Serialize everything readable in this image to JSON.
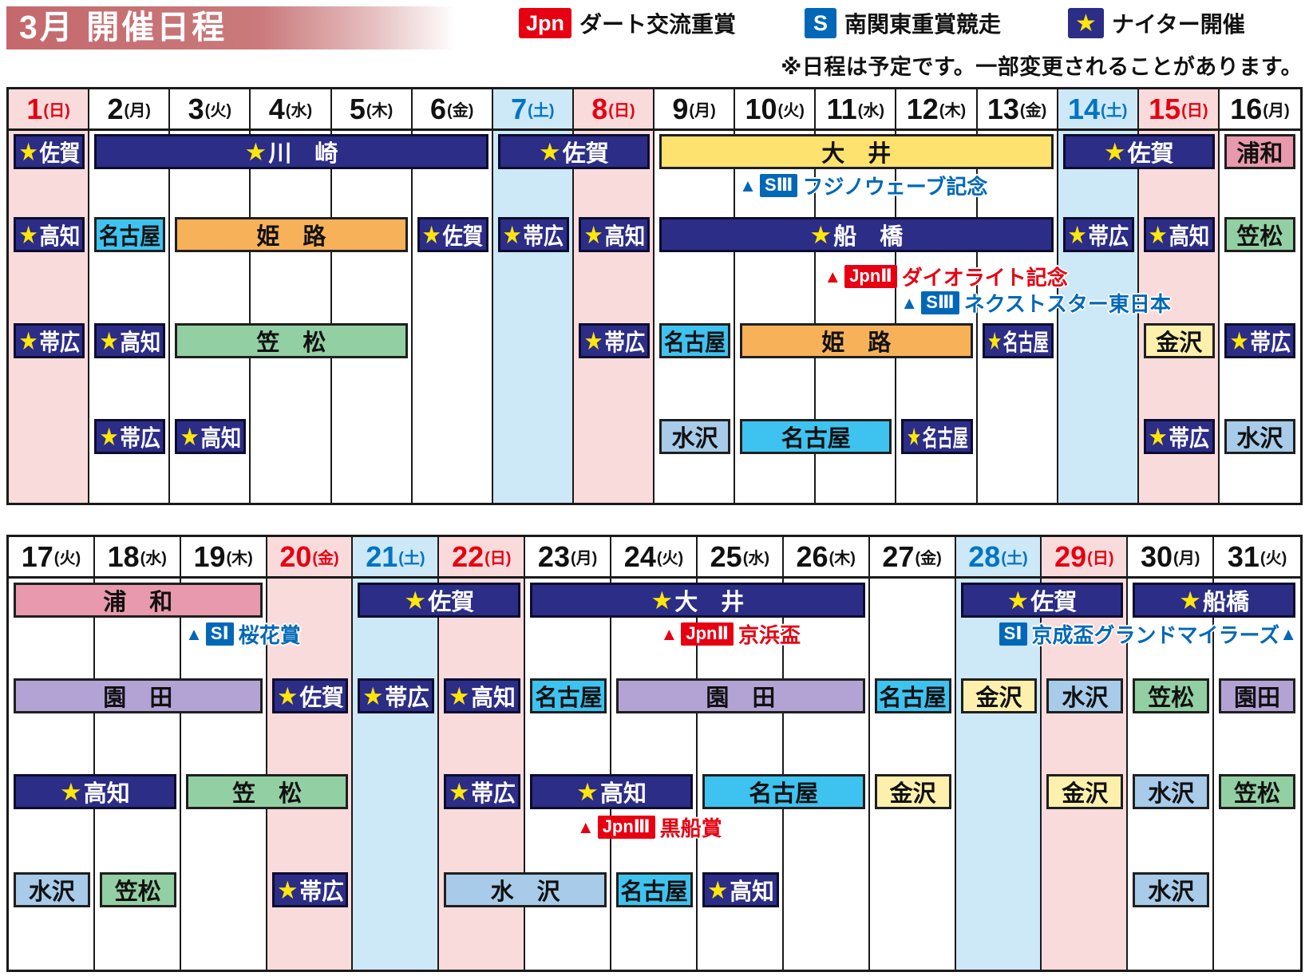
{
  "header": {
    "title": "3月 開催日程",
    "note": "※日程は予定です。一部変更されることがあります。"
  },
  "legend": {
    "items": [
      {
        "badge": "Jpn",
        "kind": "jpn",
        "label": "ダート交流重賞"
      },
      {
        "badge": "S",
        "kind": "s",
        "label": "南関東重賞競走"
      },
      {
        "badge": "★",
        "kind": "night",
        "label": "ナイター開催"
      }
    ]
  },
  "colors": {
    "jpn_red": "#e60012",
    "graded_blue": "#0068b7",
    "night_navy": "#2c2d87",
    "star_yellow": "#ffe60a",
    "sunday_bg": "#fadbdb",
    "saturday_bg": "#cde8f7",
    "sunday_text": "#e60012",
    "saturday_text": "#0074c4",
    "venues": {
      "night": "#2c2d87",
      "oi": "#fde26f",
      "urawa": "#e999ad",
      "nagoya": "#3ec3f0",
      "mizusawa": "#a7cbe9",
      "himeji": "#f7b159",
      "kasamatsu": "#92cfa3",
      "kanazawa": "#fdf0ad",
      "sonoda": "#b3a3d5"
    }
  },
  "grids": [
    {
      "name": "march-1-16",
      "first_day": 1,
      "days": [
        {
          "num": "1",
          "wd": "日",
          "type": "sun"
        },
        {
          "num": "2",
          "wd": "月",
          "type": "wk"
        },
        {
          "num": "3",
          "wd": "火",
          "type": "wk"
        },
        {
          "num": "4",
          "wd": "水",
          "type": "wk"
        },
        {
          "num": "5",
          "wd": "木",
          "type": "wk"
        },
        {
          "num": "6",
          "wd": "金",
          "type": "wk"
        },
        {
          "num": "7",
          "wd": "土",
          "type": "sat"
        },
        {
          "num": "8",
          "wd": "日",
          "type": "sun"
        },
        {
          "num": "9",
          "wd": "月",
          "type": "wk"
        },
        {
          "num": "10",
          "wd": "火",
          "type": "wk"
        },
        {
          "num": "11",
          "wd": "水",
          "type": "wk"
        },
        {
          "num": "12",
          "wd": "木",
          "type": "wk"
        },
        {
          "num": "13",
          "wd": "金",
          "type": "wk"
        },
        {
          "num": "14",
          "wd": "土",
          "type": "sat"
        },
        {
          "num": "15",
          "wd": "日",
          "type": "sun"
        },
        {
          "num": "16",
          "wd": "月",
          "type": "wk"
        }
      ],
      "events": [
        {
          "row": 0,
          "from": 1,
          "to": 1,
          "venue": "佐賀",
          "color": "night",
          "night": true
        },
        {
          "row": 0,
          "from": 2,
          "to": 6,
          "venue": "川　崎",
          "color": "night",
          "night": true
        },
        {
          "row": 0,
          "from": 7,
          "to": 8,
          "venue": "佐賀",
          "color": "night",
          "night": true
        },
        {
          "row": 0,
          "from": 9,
          "to": 13,
          "venue": "大　井",
          "color": "oi",
          "night": false
        },
        {
          "row": 0,
          "from": 14,
          "to": 15,
          "venue": "佐賀",
          "color": "night",
          "night": true
        },
        {
          "row": 0,
          "from": 16,
          "to": 16,
          "venue": "浦和",
          "color": "urawa",
          "night": false
        },
        {
          "row": 1,
          "from": 1,
          "to": 1,
          "venue": "高知",
          "color": "night",
          "night": true
        },
        {
          "row": 1,
          "from": 2,
          "to": 2,
          "venue": "名古屋",
          "color": "nagoya",
          "night": false
        },
        {
          "row": 1,
          "from": 3,
          "to": 5,
          "venue": "姫　路",
          "color": "himeji",
          "night": false
        },
        {
          "row": 1,
          "from": 6,
          "to": 6,
          "venue": "佐賀",
          "color": "night",
          "night": true
        },
        {
          "row": 1,
          "from": 7,
          "to": 7,
          "venue": "帯広",
          "color": "night",
          "night": true
        },
        {
          "row": 1,
          "from": 8,
          "to": 8,
          "venue": "高知",
          "color": "night",
          "night": true
        },
        {
          "row": 1,
          "from": 9,
          "to": 13,
          "venue": "船　橋",
          "color": "night",
          "night": true
        },
        {
          "row": 1,
          "from": 14,
          "to": 14,
          "venue": "帯広",
          "color": "night",
          "night": true
        },
        {
          "row": 1,
          "from": 15,
          "to": 15,
          "venue": "高知",
          "color": "night",
          "night": true
        },
        {
          "row": 1,
          "from": 16,
          "to": 16,
          "venue": "笠松",
          "color": "kasamatsu",
          "night": false
        },
        {
          "row": 2,
          "from": 1,
          "to": 1,
          "venue": "帯広",
          "color": "night",
          "night": true
        },
        {
          "row": 2,
          "from": 2,
          "to": 2,
          "venue": "高知",
          "color": "night",
          "night": true
        },
        {
          "row": 2,
          "from": 3,
          "to": 5,
          "venue": "笠　松",
          "color": "kasamatsu",
          "night": false
        },
        {
          "row": 2,
          "from": 8,
          "to": 8,
          "venue": "帯広",
          "color": "night",
          "night": true
        },
        {
          "row": 2,
          "from": 9,
          "to": 9,
          "venue": "名古屋",
          "color": "nagoya",
          "night": false
        },
        {
          "row": 2,
          "from": 10,
          "to": 12,
          "venue": "姫　路",
          "color": "himeji",
          "night": false
        },
        {
          "row": 2,
          "from": 13,
          "to": 13,
          "venue": "名古屋",
          "color": "night",
          "night": true
        },
        {
          "row": 2,
          "from": 15,
          "to": 15,
          "venue": "金沢",
          "color": "kanazawa",
          "night": false
        },
        {
          "row": 2,
          "from": 16,
          "to": 16,
          "venue": "帯広",
          "color": "night",
          "night": true
        },
        {
          "row": 3,
          "from": 2,
          "to": 2,
          "venue": "帯広",
          "color": "night",
          "night": true
        },
        {
          "row": 3,
          "from": 3,
          "to": 3,
          "venue": "高知",
          "color": "night",
          "night": true
        },
        {
          "row": 3,
          "from": 9,
          "to": 9,
          "venue": "水沢",
          "color": "mizusawa",
          "night": false
        },
        {
          "row": 3,
          "from": 10,
          "to": 11,
          "venue": "名古屋",
          "color": "nagoya",
          "night": false
        },
        {
          "row": 3,
          "from": 12,
          "to": 12,
          "venue": "名古屋",
          "color": "night",
          "night": true
        },
        {
          "row": 3,
          "from": 15,
          "to": 15,
          "venue": "帯広",
          "color": "night",
          "night": true
        },
        {
          "row": 3,
          "from": 16,
          "to": 16,
          "venue": "水沢",
          "color": "mizusawa",
          "night": false
        }
      ],
      "annotations": [
        {
          "row": 0,
          "line": 0,
          "kind": "s",
          "grade": "SⅢ",
          "race": "フジノウェーブ記念",
          "triangle": "before",
          "anchor_day": 10.05
        },
        {
          "row": 1,
          "line": 0,
          "kind": "jpn",
          "grade": "JpnⅡ",
          "race": "ダイオライト記念",
          "triangle": "before",
          "anchor_day": 11.1
        },
        {
          "row": 1,
          "line": 1,
          "kind": "s",
          "grade": "SⅢ",
          "race": "ネクストスター東日本",
          "triangle": "before",
          "anchor_day": 12.05
        }
      ]
    },
    {
      "name": "march-17-31",
      "first_day": 17,
      "days": [
        {
          "num": "17",
          "wd": "火",
          "type": "wk"
        },
        {
          "num": "18",
          "wd": "水",
          "type": "wk"
        },
        {
          "num": "19",
          "wd": "木",
          "type": "wk"
        },
        {
          "num": "20",
          "wd": "金",
          "type": "hol"
        },
        {
          "num": "21",
          "wd": "土",
          "type": "sat"
        },
        {
          "num": "22",
          "wd": "日",
          "type": "sun"
        },
        {
          "num": "23",
          "wd": "月",
          "type": "wk"
        },
        {
          "num": "24",
          "wd": "火",
          "type": "wk"
        },
        {
          "num": "25",
          "wd": "水",
          "type": "wk"
        },
        {
          "num": "26",
          "wd": "木",
          "type": "wk"
        },
        {
          "num": "27",
          "wd": "金",
          "type": "wk"
        },
        {
          "num": "28",
          "wd": "土",
          "type": "sat"
        },
        {
          "num": "29",
          "wd": "日",
          "type": "sun"
        },
        {
          "num": "30",
          "wd": "月",
          "type": "wk"
        },
        {
          "num": "31",
          "wd": "火",
          "type": "wk"
        }
      ],
      "events": [
        {
          "row": 0,
          "from": 17,
          "to": 19,
          "venue": "浦　和",
          "color": "urawa",
          "night": false
        },
        {
          "row": 0,
          "from": 21,
          "to": 22,
          "venue": "佐賀",
          "color": "night",
          "night": true
        },
        {
          "row": 0,
          "from": 23,
          "to": 26,
          "venue": "大　井",
          "color": "night",
          "night": true
        },
        {
          "row": 0,
          "from": 28,
          "to": 29,
          "venue": "佐賀",
          "color": "night",
          "night": true
        },
        {
          "row": 0,
          "from": 30,
          "to": 31,
          "venue": "船橋",
          "color": "night",
          "night": true
        },
        {
          "row": 1,
          "from": 17,
          "to": 19,
          "venue": "園　田",
          "color": "sonoda",
          "night": false
        },
        {
          "row": 1,
          "from": 20,
          "to": 20,
          "venue": "佐賀",
          "color": "night",
          "night": true
        },
        {
          "row": 1,
          "from": 21,
          "to": 21,
          "venue": "帯広",
          "color": "night",
          "night": true
        },
        {
          "row": 1,
          "from": 22,
          "to": 22,
          "venue": "高知",
          "color": "night",
          "night": true
        },
        {
          "row": 1,
          "from": 23,
          "to": 23,
          "venue": "名古屋",
          "color": "nagoya",
          "night": false
        },
        {
          "row": 1,
          "from": 24,
          "to": 26,
          "venue": "園　田",
          "color": "sonoda",
          "night": false
        },
        {
          "row": 1,
          "from": 27,
          "to": 27,
          "venue": "名古屋",
          "color": "nagoya",
          "night": false
        },
        {
          "row": 1,
          "from": 28,
          "to": 28,
          "venue": "金沢",
          "color": "kanazawa",
          "night": false
        },
        {
          "row": 1,
          "from": 29,
          "to": 29,
          "venue": "水沢",
          "color": "mizusawa",
          "night": false
        },
        {
          "row": 1,
          "from": 30,
          "to": 30,
          "venue": "笠松",
          "color": "kasamatsu",
          "night": false
        },
        {
          "row": 1,
          "from": 31,
          "to": 31,
          "venue": "園田",
          "color": "sonoda",
          "night": false
        },
        {
          "row": 2,
          "from": 17,
          "to": 18,
          "venue": "高知",
          "color": "night",
          "night": true
        },
        {
          "row": 2,
          "from": 19,
          "to": 20,
          "venue": "笠　松",
          "color": "kasamatsu",
          "night": false
        },
        {
          "row": 2,
          "from": 22,
          "to": 22,
          "venue": "帯広",
          "color": "night",
          "night": true
        },
        {
          "row": 2,
          "from": 23,
          "to": 24,
          "venue": "高知",
          "color": "night",
          "night": true
        },
        {
          "row": 2,
          "from": 25,
          "to": 26,
          "venue": "名古屋",
          "color": "nagoya",
          "night": false
        },
        {
          "row": 2,
          "from": 27,
          "to": 27,
          "venue": "金沢",
          "color": "kanazawa",
          "night": false
        },
        {
          "row": 2,
          "from": 29,
          "to": 29,
          "venue": "金沢",
          "color": "kanazawa",
          "night": false
        },
        {
          "row": 2,
          "from": 30,
          "to": 30,
          "venue": "水沢",
          "color": "mizusawa",
          "night": false
        },
        {
          "row": 2,
          "from": 31,
          "to": 31,
          "venue": "笠松",
          "color": "kasamatsu",
          "night": false
        },
        {
          "row": 3,
          "from": 17,
          "to": 17,
          "venue": "水沢",
          "color": "mizusawa",
          "night": false
        },
        {
          "row": 3,
          "from": 18,
          "to": 18,
          "venue": "笠松",
          "color": "kasamatsu",
          "night": false
        },
        {
          "row": 3,
          "from": 20,
          "to": 20,
          "venue": "帯広",
          "color": "night",
          "night": true
        },
        {
          "row": 3,
          "from": 22,
          "to": 23,
          "venue": "水　沢",
          "color": "mizusawa",
          "night": false
        },
        {
          "row": 3,
          "from": 24,
          "to": 24,
          "venue": "名古屋",
          "color": "nagoya",
          "night": false
        },
        {
          "row": 3,
          "from": 25,
          "to": 25,
          "venue": "高知",
          "color": "night",
          "night": true
        },
        {
          "row": 3,
          "from": 30,
          "to": 30,
          "venue": "水沢",
          "color": "mizusawa",
          "night": false
        }
      ],
      "annotations": [
        {
          "row": 0,
          "line": 0,
          "kind": "s",
          "grade": "SⅠ",
          "race": "桜花賞",
          "triangle": "before",
          "anchor_day": 19.05
        },
        {
          "row": 0,
          "line": 0,
          "kind": "jpn",
          "grade": "JpnⅡ",
          "race": "京浜盃",
          "triangle": "before",
          "anchor_day": 24.57
        },
        {
          "row": 0,
          "line": 0,
          "kind": "s",
          "grade": "SⅠ",
          "race": "京成盃グランドマイラーズ",
          "triangle": "after",
          "align": "right"
        },
        {
          "row": 2,
          "line": 0,
          "kind": "jpn",
          "grade": "JpnⅢ",
          "race": "黒船賞",
          "triangle": "before",
          "anchor_day": 23.6
        }
      ]
    }
  ]
}
